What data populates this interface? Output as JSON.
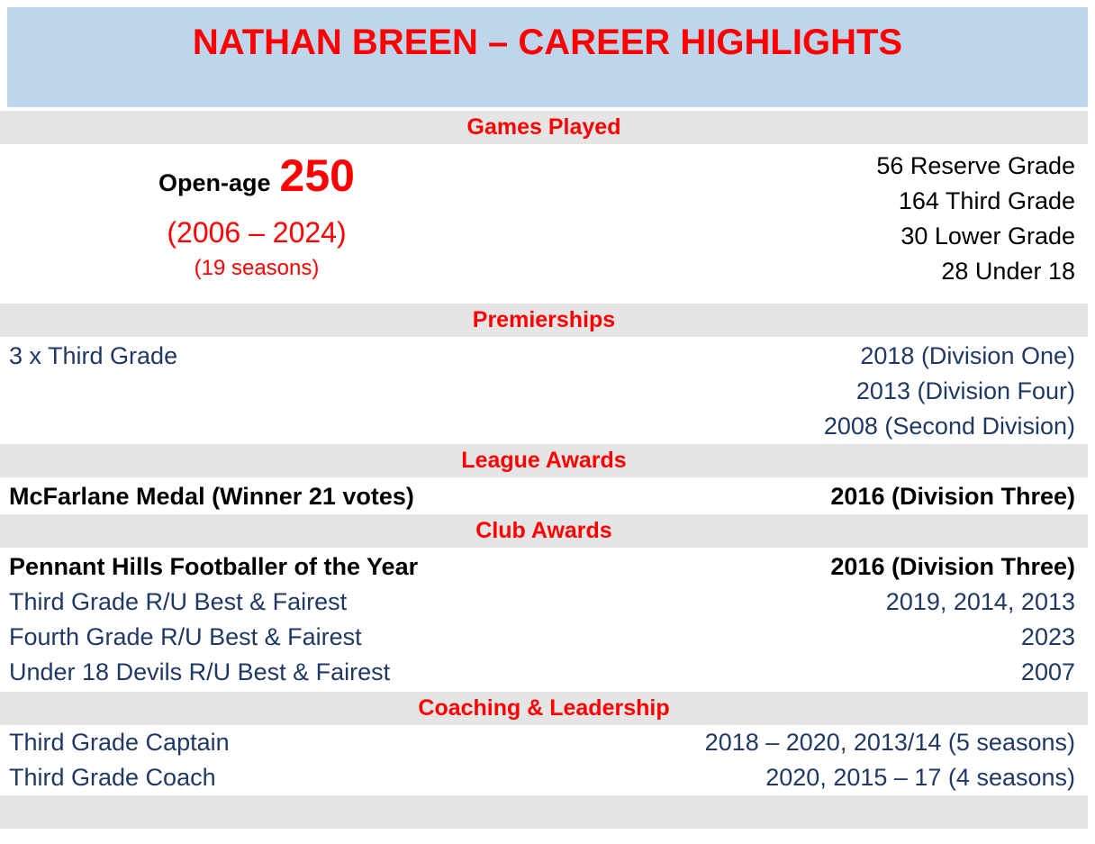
{
  "banner": {
    "title": "NATHAN BREEN – CAREER HIGHLIGHTS"
  },
  "colors": {
    "banner_bg": "#BDD6EC",
    "band_bg": "#E5E5E5",
    "accent_red": "#FF0000",
    "navy_text": "#1F3864",
    "black_text": "#000000"
  },
  "games": {
    "header": "Games Played",
    "open_age_label": "Open-age",
    "open_age_value": "250",
    "years": "(2006 – 2024)",
    "seasons": "(19 seasons)",
    "breakdown": [
      "56 Reserve Grade",
      "164 Third Grade",
      "30 Lower Grade",
      "28 Under 18"
    ]
  },
  "premierships": {
    "header": "Premierships",
    "item": "3 x Third Grade",
    "years": [
      "2018 (Division One)",
      "2013 (Division Four)",
      "2008 (Second Division)"
    ]
  },
  "league_awards": {
    "header": "League Awards",
    "item": "McFarlane Medal (Winner 21 votes)",
    "year": "2016 (Division Three)"
  },
  "club_awards": {
    "header": "Club Awards",
    "rows": [
      {
        "label": "Pennant Hills Footballer of the Year",
        "years": "2016 (Division Three)"
      },
      {
        "label": "Third Grade R/U Best & Fairest",
        "years": "2019, 2014, 2013"
      },
      {
        "label": "Fourth Grade R/U Best & Fairest",
        "years": "2023"
      },
      {
        "label": "Under 18 Devils R/U Best & Fairest",
        "years": "2007"
      }
    ]
  },
  "coaching": {
    "header": "Coaching & Leadership",
    "rows": [
      {
        "label": "Third Grade Captain",
        "years": "2018 – 2020, 2013/14 (5 seasons)"
      },
      {
        "label": "Third Grade Coach",
        "years": "2020, 2015 – 17 (4 seasons)"
      }
    ]
  }
}
